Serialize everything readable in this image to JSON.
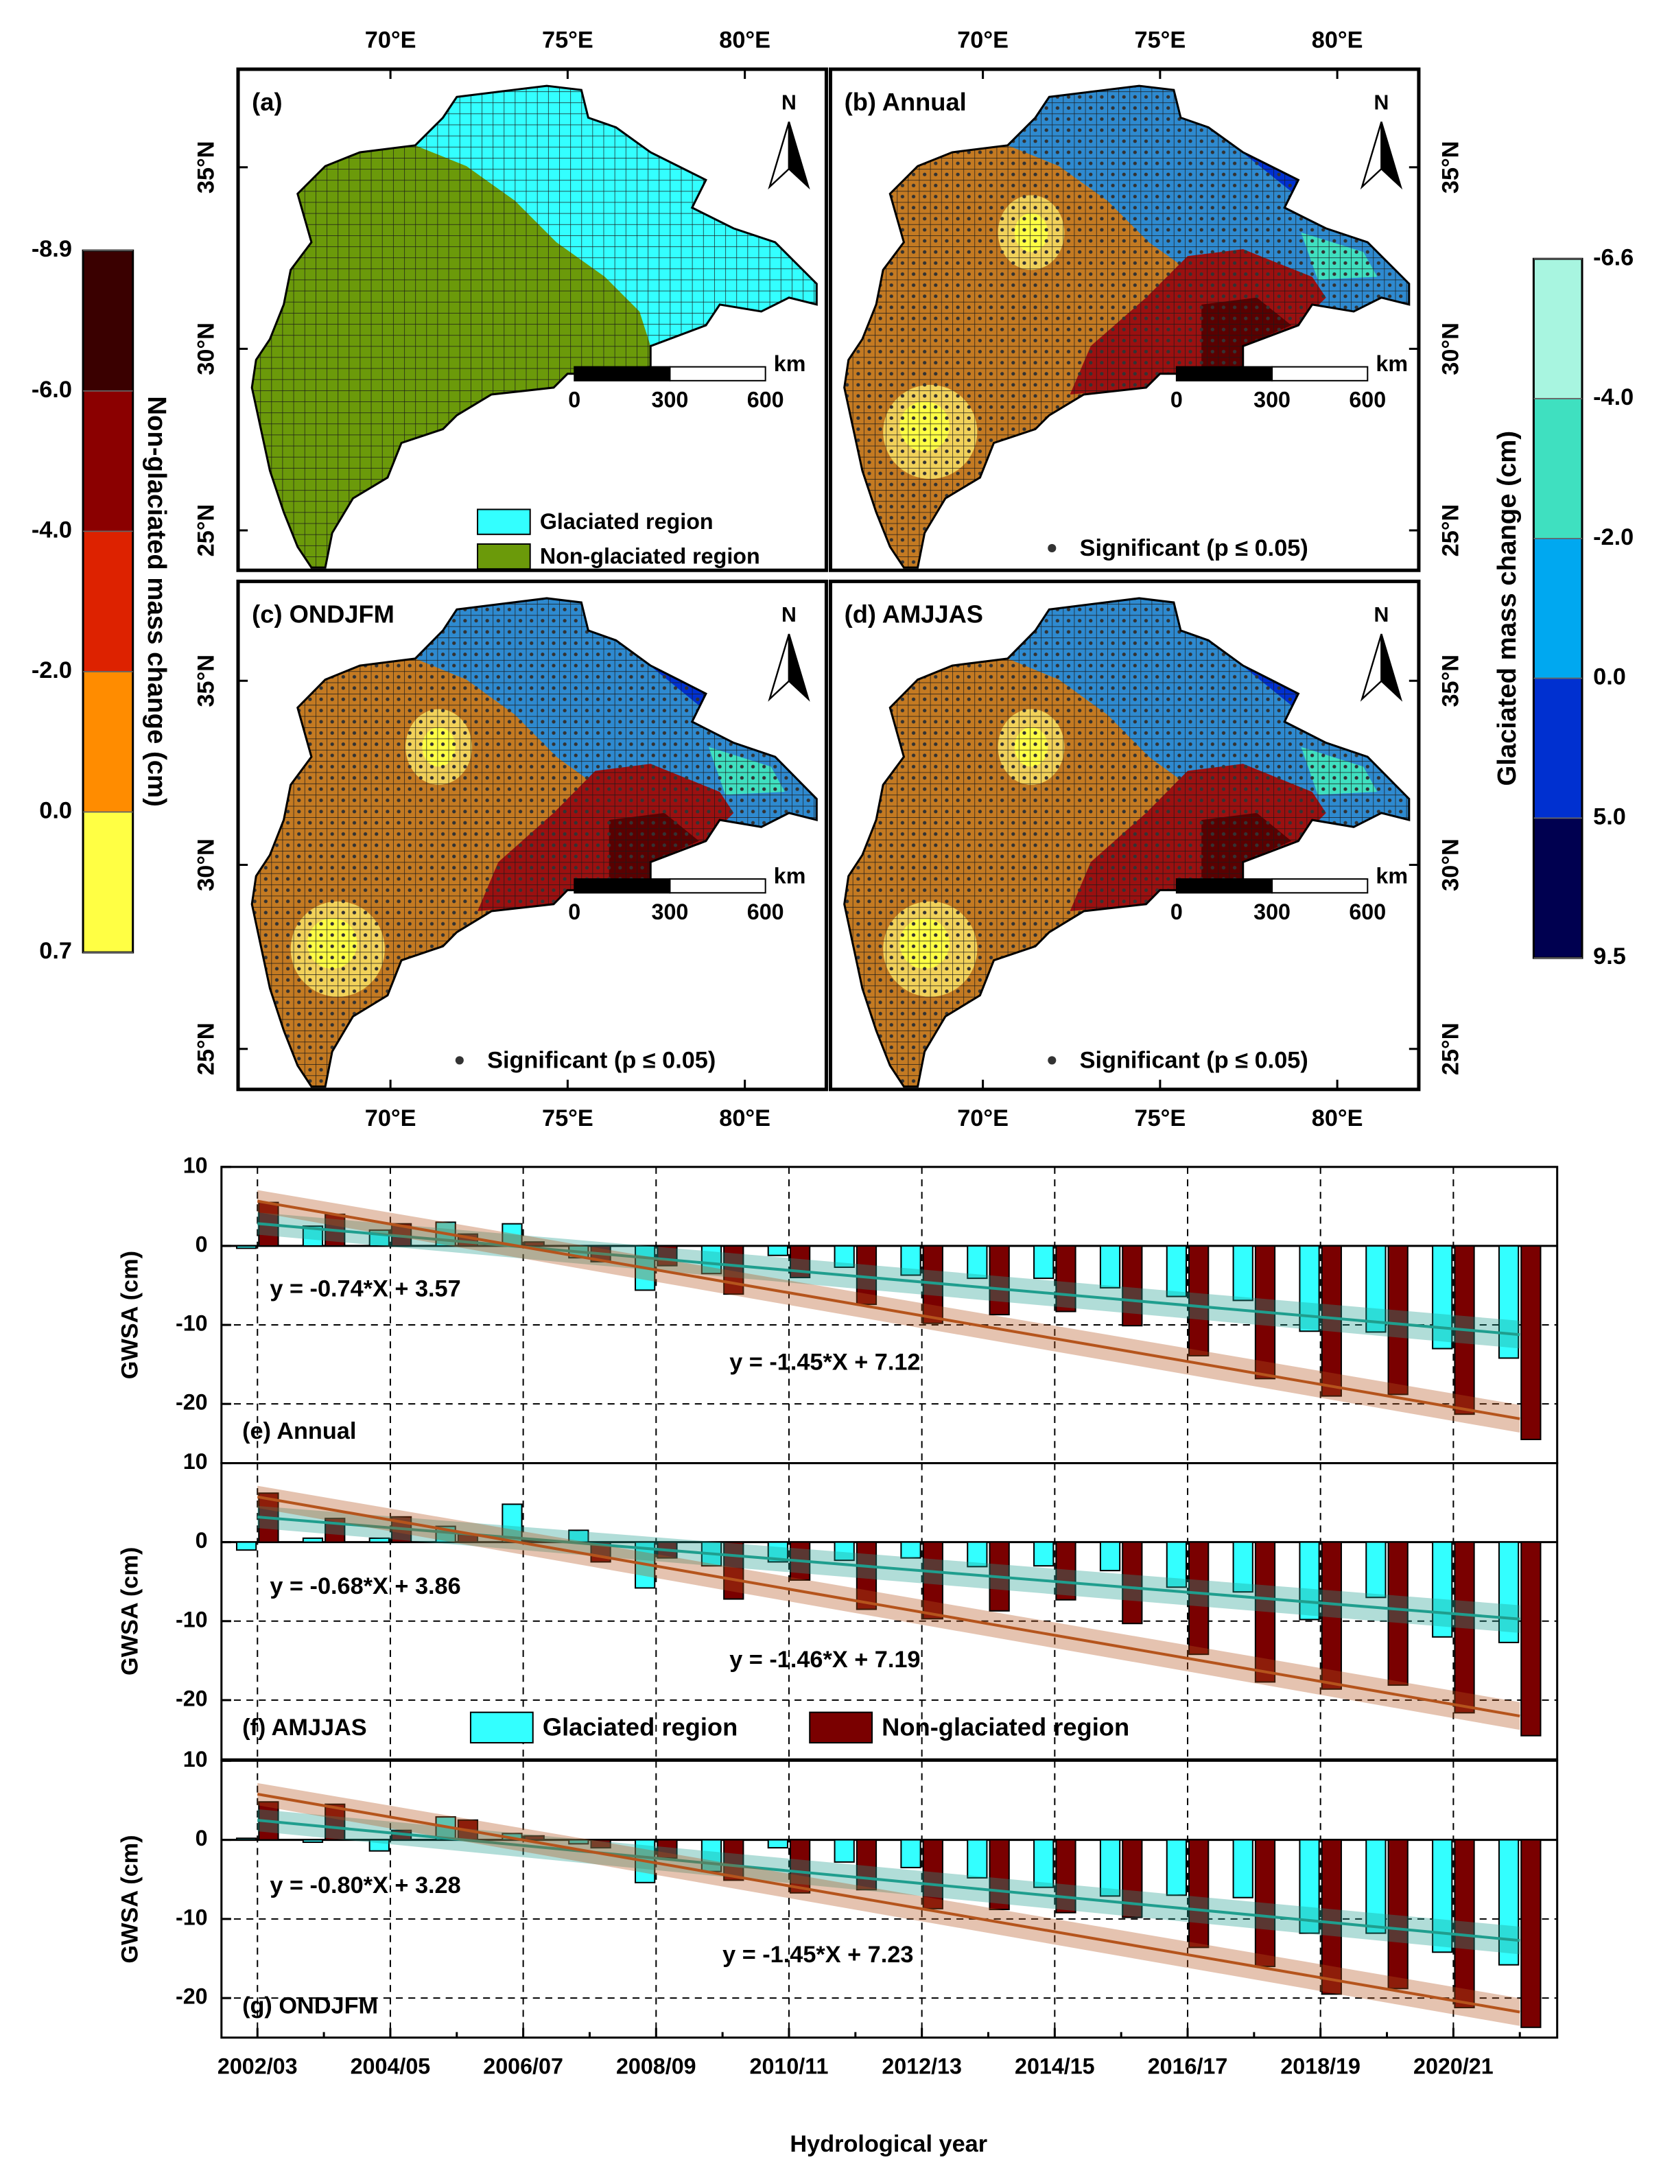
{
  "maps": {
    "panels": [
      {
        "label": "(a)"
      },
      {
        "label": "(b) Annual"
      },
      {
        "label": "(c) ONDJFM"
      },
      {
        "label": "(d) AMJJAS"
      }
    ],
    "xlim": [
      65.7,
      82.3
    ],
    "ylim": [
      23.9,
      37.7
    ],
    "xticks": [
      {
        "value": 70,
        "label": "70°E"
      },
      {
        "value": 75,
        "label": "75°E"
      },
      {
        "value": 80,
        "label": "80°E"
      }
    ],
    "yticks": [
      {
        "value": 25,
        "label": "25°N"
      },
      {
        "value": 30,
        "label": "30°N"
      },
      {
        "value": 35,
        "label": "35°N"
      }
    ],
    "north": "N",
    "scale_bar": {
      "unit": "km",
      "ticks": [
        0,
        300,
        600
      ]
    },
    "legend": [
      {
        "name": "Glaciated region",
        "color": "#33ffff"
      },
      {
        "name": "Non-glaciated region",
        "color": "#6b9a0a"
      }
    ],
    "significance": "Significant (p ≤ 0.05)",
    "colorbars": [
      {
        "title": "Non-glaciated mass change (cm)",
        "ticks": [
          -8.9,
          {
            "value": -6,
            "label": "-6.0"
          },
          {
            "value": -4,
            "label": "-4.0"
          },
          {
            "value": -2,
            "label": "-2.0"
          },
          {
            "value": 0,
            "label": "0.0"
          },
          0.7
        ],
        "colors": [
          "#3a0000",
          "#8b0000",
          "#dd2200",
          "#ff8c00",
          "#ffff44"
        ]
      },
      {
        "title": "Glaciated mass change (cm)",
        "ticks": [
          -6.6,
          {
            "value": -4,
            "label": "-4.0"
          },
          {
            "value": -2,
            "label": "-2.0"
          },
          {
            "value": 0,
            "label": "0.0"
          },
          {
            "value": 5,
            "label": "5.0"
          },
          9.5
        ],
        "colors": [
          "#a8f5e0",
          "#3fe0c0",
          "#00a8f0",
          "#0030d0",
          "#000050"
        ]
      }
    ]
  },
  "chart_data": [
    {
      "type": "bar",
      "panel_label": "(e) Annual",
      "y_label": "GWSA (cm)",
      "ylim": [
        -27.5,
        10
      ],
      "yticks": [
        -20,
        -10,
        0,
        10
      ],
      "grid": true,
      "series": [
        {
          "name": "Glaciated region",
          "color": "#33ffff",
          "values": [
            -0.3,
            2.5,
            2.0,
            3.0,
            2.8,
            -1.5,
            -5.6,
            -3.5,
            -1.2,
            -2.7,
            -3.7,
            -4.1,
            -4.1,
            -5.3,
            -6.4,
            -6.9,
            -10.8,
            -10.9,
            -13.0,
            -14.2
          ],
          "trend": {
            "label": "y = -0.74*X + 3.57",
            "slope": -0.74,
            "intercept": 3.57,
            "color": "#1f9e8e"
          }
        },
        {
          "name": "Non-glaciated region",
          "color": "#7a0000",
          "values": [
            5.5,
            4.0,
            2.8,
            1.5,
            0.5,
            -2.0,
            -2.5,
            -6.1,
            -4.0,
            -7.4,
            -9.8,
            -8.7,
            -8.3,
            -10.1,
            -13.9,
            -16.8,
            -19.0,
            -18.8,
            -21.3,
            -24.5
          ],
          "trend": {
            "label": "y = -1.45*X + 7.12",
            "slope": -1.45,
            "intercept": 7.12,
            "color": "#b5541c"
          }
        }
      ]
    },
    {
      "type": "bar",
      "panel_label": "(f) AMJJAS",
      "y_label": "GWSA (cm)",
      "ylim": [
        -27.5,
        10
      ],
      "yticks": [
        -20,
        -10,
        0,
        10
      ],
      "grid": true,
      "legend": true,
      "series": [
        {
          "name": "Glaciated region",
          "color": "#33ffff",
          "values": [
            -1.0,
            0.5,
            0.5,
            2.0,
            4.8,
            1.5,
            -5.8,
            -3.0,
            -2.5,
            -2.3,
            -2.0,
            -3.1,
            -3.0,
            -3.6,
            -5.7,
            -6.3,
            -9.8,
            -7.0,
            -12.0,
            -12.7
          ],
          "trend": {
            "label": "y = -0.68*X + 3.86",
            "slope": -0.68,
            "intercept": 3.86,
            "color": "#1f9e8e"
          }
        },
        {
          "name": "Non-glaciated region",
          "color": "#7a0000",
          "values": [
            6.2,
            3.0,
            3.2,
            1.0,
            0.2,
            -2.5,
            -2.0,
            -7.2,
            -4.8,
            -8.5,
            -9.7,
            -8.7,
            -7.3,
            -10.3,
            -14.2,
            -17.7,
            -18.6,
            -18.1,
            -21.6,
            -24.5
          ],
          "trend": {
            "label": "y = -1.46*X + 7.19",
            "slope": -1.46,
            "intercept": 7.19,
            "color": "#b5541c"
          }
        }
      ]
    },
    {
      "type": "bar",
      "panel_label": "(g) ONDJFM",
      "y_label": "GWSA (cm)",
      "x_label": "Hydrological year",
      "ylim": [
        -25,
        10
      ],
      "yticks": [
        -20,
        -10,
        0,
        10
      ],
      "grid": true,
      "categories": [
        "2002/03",
        null,
        "2004/05",
        null,
        "2006/07",
        null,
        "2008/09",
        null,
        "2010/11",
        null,
        "2012/13",
        null,
        "2014/15",
        null,
        "2016/17",
        null,
        "2018/19",
        null,
        "2020/21",
        null
      ],
      "series": [
        {
          "name": "Glaciated region",
          "color": "#33ffff",
          "values": [
            0.2,
            -0.3,
            -1.4,
            2.9,
            0.8,
            -0.5,
            -5.4,
            -4.0,
            -1.0,
            -2.8,
            -3.5,
            -4.8,
            -6.0,
            -7.1,
            -7.0,
            -7.3,
            -11.8,
            -11.8,
            -14.2,
            -15.8
          ],
          "trend": {
            "label": "y = -0.80*X + 3.28",
            "slope": -0.8,
            "intercept": 3.28,
            "color": "#1f9e8e"
          }
        },
        {
          "name": "Non-glaciated region",
          "color": "#7a0000",
          "values": [
            4.8,
            4.5,
            1.2,
            2.5,
            0.5,
            -1.0,
            -2.3,
            -5.1,
            -6.7,
            -6.3,
            -8.7,
            -8.8,
            -9.2,
            -9.8,
            -13.6,
            -16.0,
            -19.5,
            -18.8,
            -21.2,
            -23.7
          ],
          "trend": {
            "label": "y = -1.45*X + 7.23",
            "slope": -1.45,
            "intercept": 7.23,
            "color": "#b5541c"
          }
        }
      ]
    }
  ]
}
